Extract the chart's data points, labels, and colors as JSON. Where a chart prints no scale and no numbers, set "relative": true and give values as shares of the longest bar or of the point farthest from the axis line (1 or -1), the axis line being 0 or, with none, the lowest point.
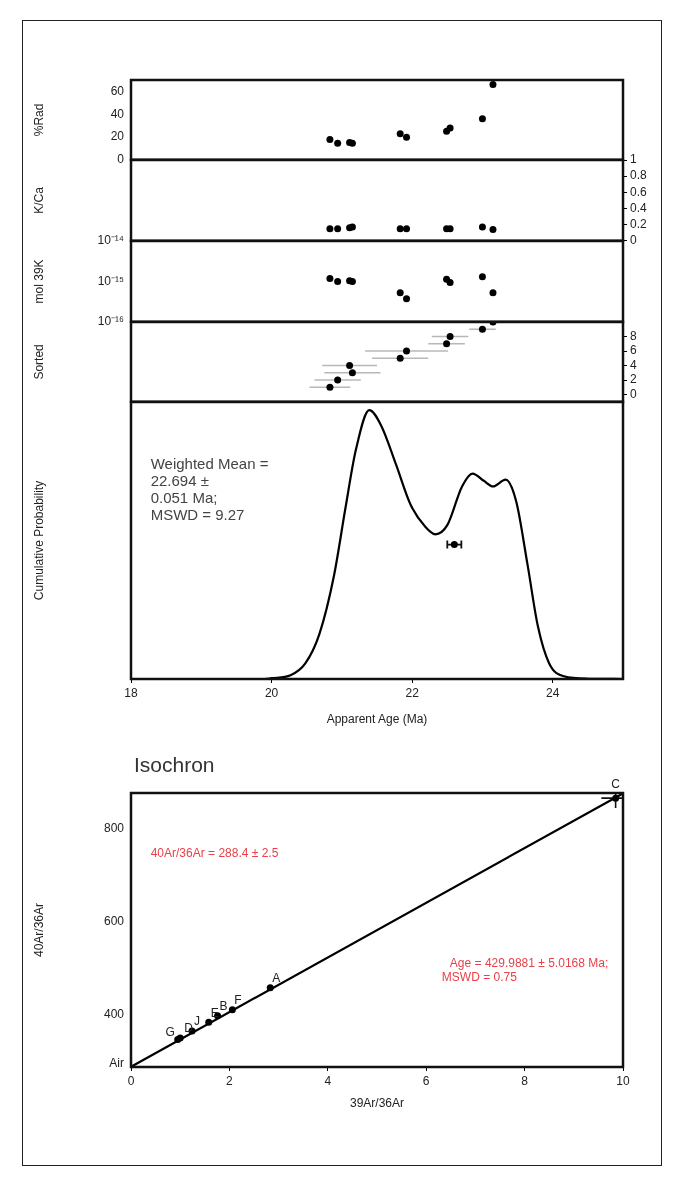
{
  "chart_data": [
    {
      "type": "scatter",
      "ylabel": "%Rad",
      "x": [
        20.83,
        20.94,
        21.11,
        21.15,
        21.83,
        21.92,
        22.49,
        22.54,
        23.0,
        23.15
      ],
      "values": [
        17.8,
        14.6,
        15.2,
        14.6,
        22.9,
        19.7,
        25.1,
        27.9,
        35.9,
        66
      ],
      "color": "#000000",
      "xlim": [
        18,
        25
      ],
      "ylim": [
        0,
        70
      ],
      "yticks": [
        0,
        20,
        40,
        60
      ],
      "tick_labels": "y",
      "marker": "circle"
    },
    {
      "type": "scatter",
      "y2label": "K/Ca",
      "series": [
        {
          "axis": "y2",
          "color": "#000000",
          "values": [
            0.15,
            0.15,
            0.16,
            0.17,
            0.15,
            0.15,
            0.15,
            0.15,
            0.17,
            0.14
          ]
        }
      ],
      "x": [
        20.83,
        20.94,
        21.11,
        21.15,
        21.83,
        21.92,
        22.49,
        22.54,
        23.0,
        23.15
      ],
      "xlim": [
        18,
        25
      ],
      "y2lim": [
        0,
        1
      ],
      "y2ticks": [
        0,
        0.2,
        0.4,
        0.6,
        0.8,
        1
      ],
      "tick_labels": "y",
      "marker": "circle"
    },
    {
      "type": "scatter",
      "ylabel": "mol 39K",
      "log": "y",
      "x": [
        20.83,
        20.94,
        21.11,
        21.15,
        21.83,
        21.92,
        22.49,
        22.54,
        23.0,
        23.15
      ],
      "values": [
        1.18e-15,
        1e-15,
        1.04e-15,
        1e-15,
        5.2e-16,
        3.7e-16,
        1.13e-15,
        9.4e-16,
        1.3e-15,
        5.2e-16
      ],
      "color": "#000000",
      "xlim": [
        18,
        25
      ],
      "ylim": [
        1e-16,
        1e-14
      ],
      "yticks": [
        {
          "value": 1e-16,
          "label": "10⁻¹⁶"
        },
        {
          "value": 1e-15,
          "label": "10⁻¹⁵"
        },
        {
          "value": 1e-14,
          "label": "10⁻¹⁴"
        }
      ],
      "tick_labels": "y",
      "marker": "circle"
    },
    {
      "type": "scatter",
      "y2label": "Sorted",
      "series": [
        {
          "axis": "y2",
          "color": "#000000",
          "values": [
            1,
            2,
            3,
            4,
            5,
            6,
            7,
            8,
            9,
            10
          ],
          "xerrors": [
            0.29,
            0.33,
            0.4,
            0.39,
            0.4,
            0.59,
            0.26,
            0.26,
            0.19,
            0.1
          ]
        }
      ],
      "x": [
        20.83,
        20.94,
        21.15,
        21.11,
        21.83,
        21.92,
        22.49,
        22.54,
        23.0,
        23.15
      ],
      "xlim": [
        18,
        25
      ],
      "y2lim": [
        -1,
        10
      ],
      "y2ticks": [
        0,
        2,
        4,
        6,
        8
      ],
      "tick_labels": "y",
      "marker": "circle"
    },
    {
      "type": "line",
      "relative": true,
      "ylabel": "Cumulative Probability",
      "xlabel": "Apparent Age (Ma)",
      "xlim": [
        18,
        25
      ],
      "xticks": [
        18,
        20,
        22,
        24
      ],
      "tick_labels": "x",
      "series": [
        {
          "color": "#000000",
          "x": [
            18,
            19.9,
            20.0,
            20.27,
            20.48,
            20.68,
            20.89,
            21.05,
            21.2,
            21.39,
            21.56,
            21.77,
            21.98,
            22.19,
            22.33,
            22.5,
            22.71,
            22.86,
            23.02,
            23.15,
            23.33,
            23.48,
            23.64,
            23.79,
            23.95,
            24.16,
            24.52,
            25
          ],
          "values": [
            0,
            0,
            0.003,
            0.014,
            0.058,
            0.167,
            0.387,
            0.634,
            0.853,
            1,
            0.942,
            0.798,
            0.647,
            0.565,
            0.538,
            0.572,
            0.716,
            0.764,
            0.737,
            0.716,
            0.741,
            0.661,
            0.428,
            0.195,
            0.058,
            0.01,
            0.001,
            0
          ]
        },
        {
          "type": "scatter",
          "color": "#000000",
          "x": [
            22.6
          ],
          "values": [
            0.5
          ],
          "xerrors": [
            0.1
          ]
        }
      ],
      "annotations": [
        "Weighted Mean =\n22.694 ±\n0.051 Ma;\nMSWD = 9.27"
      ]
    },
    {
      "type": "scatter",
      "title": "Isochron",
      "xlabel": "39Ar/36Ar",
      "ylabel": "40Ar/36Ar",
      "xlim": [
        0,
        10
      ],
      "ylim": [
        288,
        876
      ],
      "xticks": [
        0,
        2,
        4,
        6,
        8,
        10
      ],
      "yticks": [
        {
          "value": 295.5,
          "label": "Air"
        },
        400,
        600,
        800
      ],
      "series": [
        {
          "type": "line",
          "color": "#000000",
          "x": [
            0,
            10
          ],
          "values": [
            288.4,
            875
          ]
        },
        {
          "color": "#000000",
          "x": [
            2.83,
            2.06,
            1.76,
            1.58,
            1.24,
            0.95,
            1.0,
            9.85
          ],
          "values": [
            458,
            411,
            398,
            384,
            365,
            347,
            350,
            865
          ],
          "xerrors": [
            null,
            null,
            null,
            null,
            null,
            null,
            null,
            [
              9.56,
              9.98
            ]
          ],
          "errors": [
            null,
            null,
            null,
            null,
            null,
            null,
            null,
            [
              844,
              874
            ]
          ]
        }
      ],
      "annotations": [
        "40Ar/36Ar = 288.4 ± 2.5",
        "Age = 429.9881 ± 5.0168 Ma;\nMSWD = 0.75",
        {
          "text": "A",
          "x": 2.83,
          "y": 458
        },
        {
          "text": "F",
          "x": 2.06,
          "y": 411
        },
        {
          "text": "B",
          "x": 1.76,
          "y": 398
        },
        {
          "text": "E",
          "x": 1.58,
          "y": 384
        },
        {
          "text": "J",
          "x": 1.24,
          "y": 365
        },
        {
          "text": "G",
          "x": 0.95,
          "y": 347
        },
        {
          "text": "D",
          "x": 1.0,
          "y": 350
        },
        {
          "text": "C",
          "x": 9.85,
          "y": 865
        }
      ]
    }
  ]
}
